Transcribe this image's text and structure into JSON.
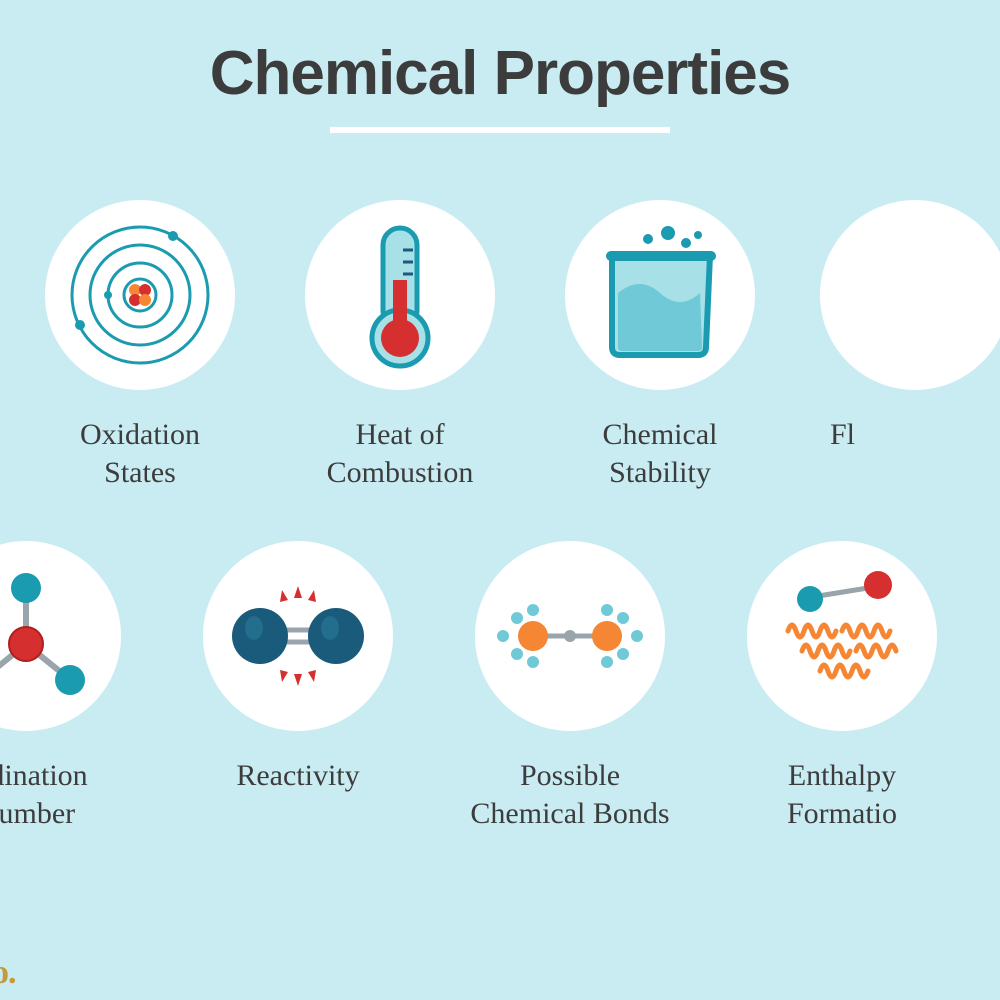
{
  "title": "Chemical Properties",
  "background_color": "#c9ecf3",
  "circle_color": "#ffffff",
  "title_color": "#3c3c3c",
  "label_color": "#3c3c3c",
  "title_fontsize": 62,
  "label_fontsize": 30,
  "circle_diameter": 190,
  "underline_width": 340,
  "underline_color": "#ffffff",
  "watermark_text": "o.",
  "watermark_color": "#c49a3a",
  "colors": {
    "teal": "#1a9bb0",
    "teal_light": "#6fc9d6",
    "teal_pale": "#a8e0e8",
    "red": "#d62f2f",
    "red_dark": "#b01f1f",
    "orange": "#f58634",
    "orange_dark": "#e06a1a",
    "navy": "#1a5a7a",
    "grey": "#9aa5ab"
  },
  "items": [
    {
      "label": "",
      "icon": "blank"
    },
    {
      "label": "Oxidation\nStates",
      "icon": "atom"
    },
    {
      "label": "Heat of\nCombustion",
      "icon": "thermometer"
    },
    {
      "label": "Chemical\nStability",
      "icon": "beaker"
    },
    {
      "label": "Fl",
      "icon": "blank"
    },
    {
      "label": "ordination\nNumber",
      "icon": "coordination"
    },
    {
      "label": "Reactivity",
      "icon": "reactivity"
    },
    {
      "label": "Possible\nChemical Bonds",
      "icon": "bonds"
    },
    {
      "label": "Enthalpy \nFormatio",
      "icon": "enthalpy"
    }
  ]
}
